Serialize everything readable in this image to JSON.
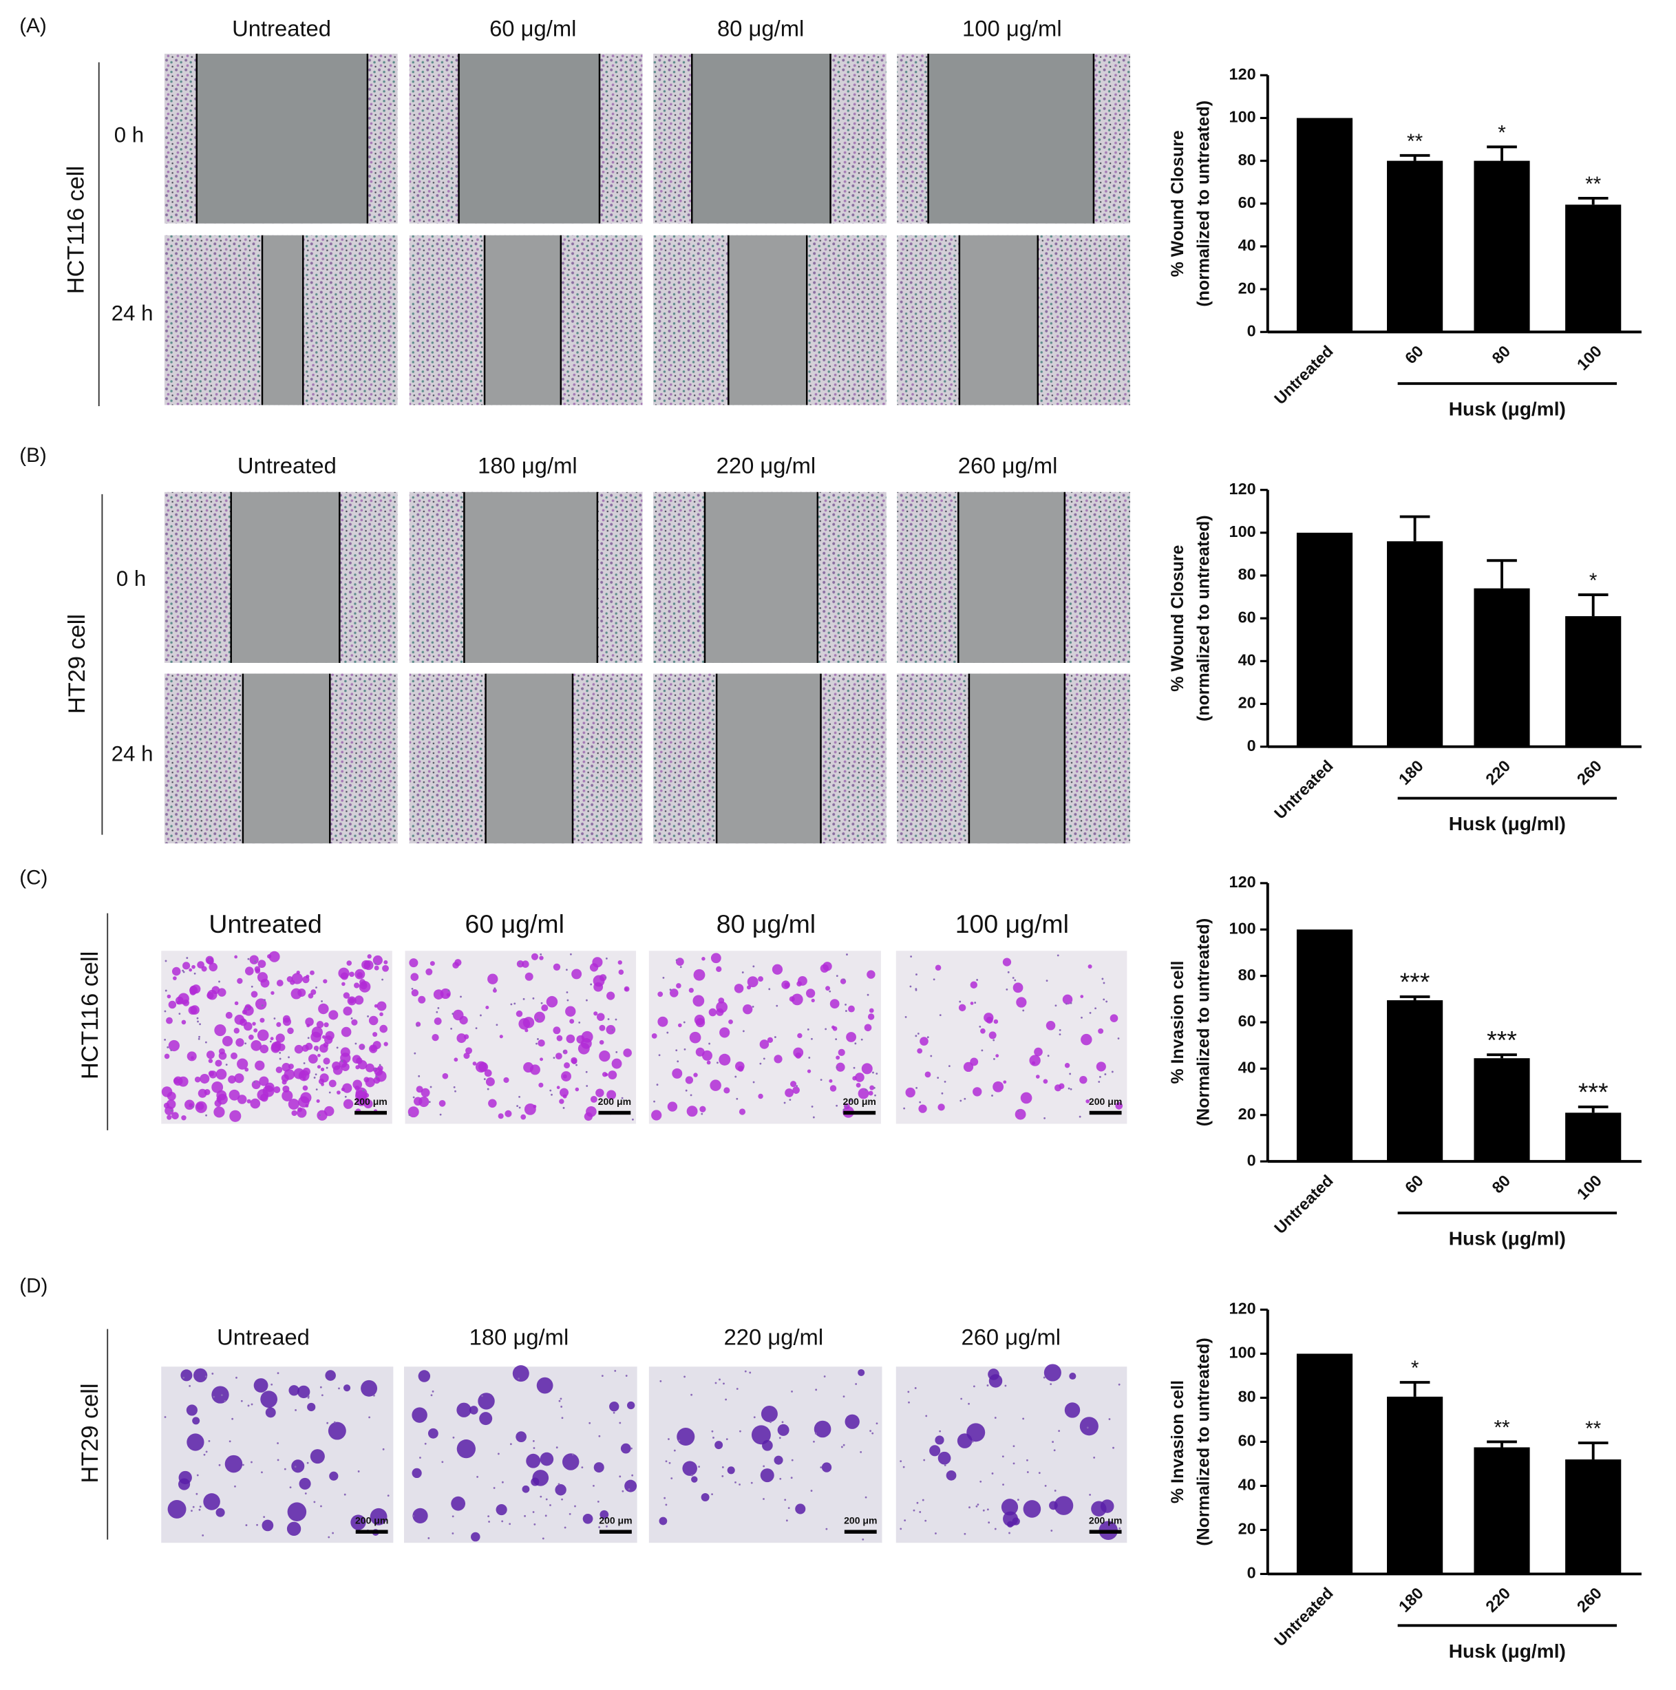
{
  "panels": [
    {
      "label": "(A)",
      "cell_line": "HCT116 cell",
      "columns": [
        "Untreated",
        "60 μg/ml",
        "80 μg/ml",
        "100 μg/ml"
      ],
      "rows": [
        "0 h",
        "24 h"
      ]
    },
    {
      "label": "(B)",
      "cell_line": "HT29 cell",
      "columns": [
        "Untreated",
        "180 μg/ml",
        "220 μg/ml",
        "260 μg/ml"
      ],
      "rows": [
        "0 h",
        "24 h"
      ]
    },
    {
      "label": "(C)",
      "cell_line": "HCT116 cell",
      "columns": [
        "Untreated",
        "60 μg/ml",
        "80 μg/ml",
        "100 μg/ml"
      ],
      "scale_bar": "200 μm"
    },
    {
      "label": "(D)",
      "cell_line": "HT29 cell",
      "columns": [
        "Untreaed",
        "180 μg/ml",
        "220 μg/ml",
        "260 μg/ml"
      ],
      "scale_bar": "200 μm"
    }
  ],
  "chart_data": [
    {
      "type": "bar",
      "ylabel": [
        "% Wound Closure",
        "(normalized to untreated)"
      ],
      "xlabel": "Husk (μg/ml)",
      "categories": [
        "Untreated",
        "60",
        "80",
        "100"
      ],
      "values": [
        100,
        80,
        80,
        59.5
      ],
      "errors": [
        null,
        2.5,
        6.5,
        3
      ],
      "annotations": [
        null,
        "**",
        "*",
        "**"
      ],
      "color": "#000000",
      "ylim": [
        0,
        120
      ],
      "yticks": [
        0,
        20,
        40,
        60,
        80,
        100,
        120
      ]
    },
    {
      "type": "bar",
      "ylabel": [
        "% Wound Closure",
        "(normalized to untreated)"
      ],
      "xlabel": "Husk (μg/ml)",
      "categories": [
        "Untreated",
        "180",
        "220",
        "260"
      ],
      "values": [
        100,
        96,
        74,
        61
      ],
      "errors": [
        null,
        11.5,
        13,
        10
      ],
      "annotations": [
        null,
        null,
        null,
        "*"
      ],
      "color": "#000000",
      "ylim": [
        0,
        120
      ],
      "yticks": [
        0,
        20,
        40,
        60,
        80,
        100,
        120
      ]
    },
    {
      "type": "bar",
      "ylabel": [
        "% Invasion cell",
        "(Normalized to untreated)"
      ],
      "xlabel": "Husk (μg/ml)",
      "categories": [
        "Untreated",
        "60",
        "80",
        "100"
      ],
      "values": [
        100,
        69.5,
        44.5,
        21
      ],
      "errors": [
        null,
        1.5,
        1.5,
        2.5
      ],
      "annotations": [
        null,
        "***",
        "***",
        "***"
      ],
      "color": "#000000",
      "ylim": [
        0,
        120
      ],
      "yticks": [
        0,
        20,
        40,
        60,
        80,
        100,
        120
      ]
    },
    {
      "type": "bar",
      "ylabel": [
        "% Invasion cell",
        "(Normalized to untreated)"
      ],
      "xlabel": "Husk (μg/ml)",
      "categories": [
        "Untreated",
        "180",
        "220",
        "260"
      ],
      "values": [
        100,
        80.5,
        57.5,
        52
      ],
      "errors": [
        null,
        6.5,
        2.5,
        7.5
      ],
      "annotations": [
        null,
        "*",
        "**",
        "**"
      ],
      "color": "#000000",
      "ylim": [
        0,
        120
      ],
      "yticks": [
        0,
        20,
        40,
        60,
        80,
        100,
        120
      ]
    }
  ]
}
